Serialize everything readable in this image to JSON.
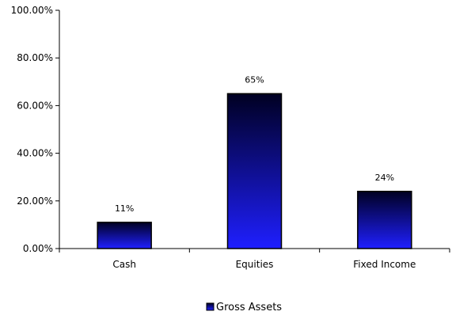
{
  "chart_data": {
    "type": "bar",
    "categories": [
      "Cash",
      "Equities",
      "Fixed Income"
    ],
    "series": [
      {
        "name": "Gross Assets",
        "values": [
          0.11,
          0.65,
          0.24
        ]
      }
    ],
    "data_labels": [
      "11%",
      "65%",
      "24%"
    ],
    "y_ticks": [
      0,
      0.2,
      0.4,
      0.6,
      0.8,
      1.0
    ],
    "y_tick_labels": [
      "0.00%",
      "20.00%",
      "40.00%",
      "60.00%",
      "80.00%",
      "100.00%"
    ],
    "ylim": [
      0,
      1.0
    ],
    "title": "",
    "xlabel": "",
    "ylabel": "",
    "grid": false,
    "legend_position": "bottom",
    "bar_gradient": {
      "top": "#000022",
      "bottom": "#1f1fff"
    },
    "bar_outline": "#000000"
  }
}
